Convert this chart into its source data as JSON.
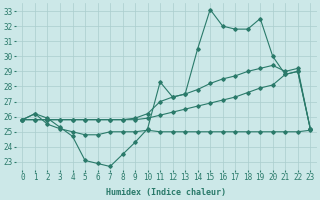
{
  "title": "",
  "xlabel": "Humidex (Indice chaleur)",
  "bg_color": "#cce8e8",
  "grid_color": "#aacece",
  "line_color": "#2a7a6a",
  "xlim": [
    -0.5,
    23.5
  ],
  "ylim": [
    22.5,
    33.5
  ],
  "yticks": [
    23,
    24,
    25,
    26,
    27,
    28,
    29,
    30,
    31,
    32,
    33
  ],
  "xticks": [
    0,
    1,
    2,
    3,
    4,
    5,
    6,
    7,
    8,
    9,
    10,
    11,
    12,
    13,
    14,
    15,
    16,
    17,
    18,
    19,
    20,
    21,
    22,
    23
  ],
  "series": [
    [
      25.8,
      26.2,
      25.9,
      25.3,
      24.7,
      23.1,
      22.9,
      22.7,
      23.5,
      24.3,
      25.2,
      28.3,
      27.3,
      27.5,
      30.5,
      33.1,
      32.0,
      31.8,
      31.8,
      32.5,
      30.0,
      28.8,
      29.0,
      25.2
    ],
    [
      25.8,
      26.2,
      25.5,
      25.2,
      25.0,
      24.8,
      24.8,
      25.0,
      25.0,
      25.0,
      25.1,
      25.0,
      25.0,
      25.0,
      25.0,
      25.0,
      25.0,
      25.0,
      25.0,
      25.0,
      25.0,
      25.0,
      25.0,
      25.1
    ],
    [
      25.8,
      25.8,
      25.8,
      25.8,
      25.8,
      25.8,
      25.8,
      25.8,
      25.8,
      25.9,
      26.2,
      27.0,
      27.3,
      27.5,
      27.8,
      28.2,
      28.5,
      28.7,
      29.0,
      29.2,
      29.4,
      29.0,
      29.2,
      25.2
    ],
    [
      25.8,
      25.8,
      25.8,
      25.8,
      25.8,
      25.8,
      25.8,
      25.8,
      25.8,
      25.8,
      25.9,
      26.1,
      26.3,
      26.5,
      26.7,
      26.9,
      27.1,
      27.3,
      27.6,
      27.9,
      28.1,
      28.8,
      29.0,
      25.2
    ]
  ]
}
